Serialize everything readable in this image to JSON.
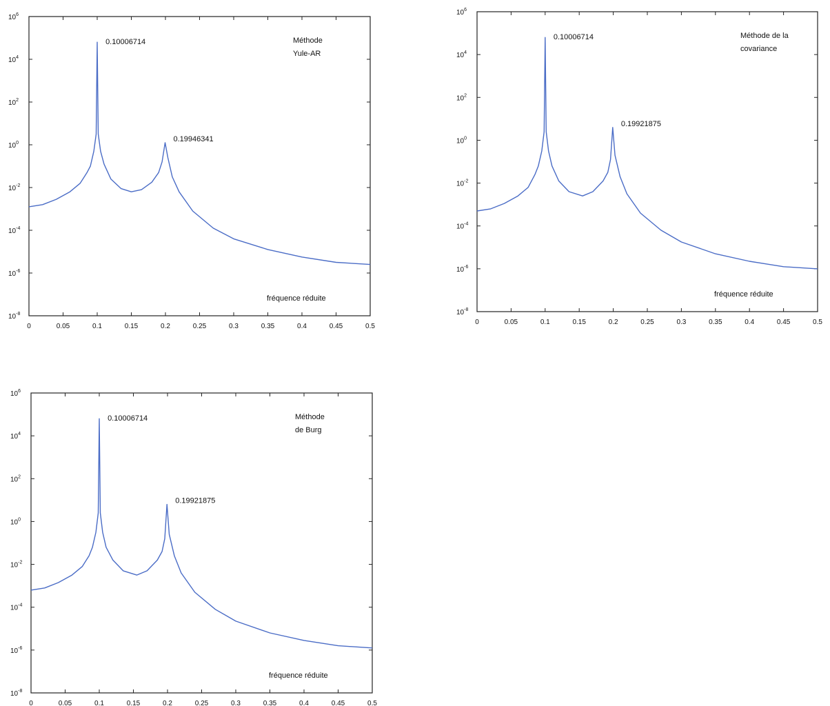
{
  "chart_data": [
    {
      "type": "line",
      "method_label": [
        "Méthode",
        "Yule-AR"
      ],
      "xlabel": "fréquence réduite",
      "xlim": [
        0,
        0.5
      ],
      "yscale": "log",
      "y_ticks": [
        {
          "base": "10",
          "exp": "-8"
        },
        {
          "base": "10",
          "exp": "-6"
        },
        {
          "base": "10",
          "exp": "-4"
        },
        {
          "base": "10",
          "exp": "-2"
        },
        {
          "base": "10",
          "exp": "0"
        },
        {
          "base": "10",
          "exp": "2"
        },
        {
          "base": "10",
          "exp": "4"
        },
        {
          "base": "10",
          "exp": "6"
        }
      ],
      "x_ticks": [
        "0",
        "0.05",
        "0.1",
        "0.15",
        "0.2",
        "0.25",
        "0.3",
        "0.35",
        "0.4",
        "0.45",
        "0.5"
      ],
      "peaks": [
        {
          "x": 0.10006714,
          "label": "0.10006714"
        },
        {
          "x": 0.19946341,
          "label": "0.19946341"
        }
      ],
      "series": [
        {
          "color": "#4a6cc6",
          "points": [
            [
              0,
              -2.9
            ],
            [
              0.02,
              -2.8
            ],
            [
              0.04,
              -2.55
            ],
            [
              0.06,
              -2.2
            ],
            [
              0.075,
              -1.8
            ],
            [
              0.085,
              -1.3
            ],
            [
              0.09,
              -1.0
            ],
            [
              0.095,
              -0.3
            ],
            [
              0.0985,
              0.5
            ],
            [
              0.1,
              4.8
            ],
            [
              0.1015,
              0.5
            ],
            [
              0.105,
              -0.3
            ],
            [
              0.11,
              -0.9
            ],
            [
              0.12,
              -1.6
            ],
            [
              0.135,
              -2.05
            ],
            [
              0.15,
              -2.2
            ],
            [
              0.165,
              -2.1
            ],
            [
              0.18,
              -1.75
            ],
            [
              0.19,
              -1.3
            ],
            [
              0.195,
              -0.8
            ],
            [
              0.1995,
              0.1
            ],
            [
              0.2035,
              -0.6
            ],
            [
              0.21,
              -1.5
            ],
            [
              0.22,
              -2.2
            ],
            [
              0.24,
              -3.1
            ],
            [
              0.27,
              -3.9
            ],
            [
              0.3,
              -4.4
            ],
            [
              0.35,
              -4.9
            ],
            [
              0.4,
              -5.25
            ],
            [
              0.45,
              -5.5
            ],
            [
              0.5,
              -5.6
            ]
          ]
        }
      ]
    },
    {
      "type": "line",
      "method_label": [
        "Méthode de la",
        "covariance"
      ],
      "xlabel": "fréquence réduite",
      "xlim": [
        0,
        0.5
      ],
      "yscale": "log",
      "y_ticks": [
        {
          "base": "10",
          "exp": "-8"
        },
        {
          "base": "10",
          "exp": "-6"
        },
        {
          "base": "10",
          "exp": "-4"
        },
        {
          "base": "10",
          "exp": "-2"
        },
        {
          "base": "10",
          "exp": "0"
        },
        {
          "base": "10",
          "exp": "2"
        },
        {
          "base": "10",
          "exp": "4"
        },
        {
          "base": "10",
          "exp": "6"
        }
      ],
      "x_ticks": [
        "0",
        "0.05",
        "0.1",
        "0.15",
        "0.2",
        "0.25",
        "0.3",
        "0.35",
        "0.4",
        "0.45",
        "0.5"
      ],
      "peaks": [
        {
          "x": 0.10006714,
          "label": "0.10006714"
        },
        {
          "x": 0.19921875,
          "label": "0.19921875"
        }
      ],
      "series": [
        {
          "color": "#4a6cc6",
          "points": [
            [
              0,
              -3.3
            ],
            [
              0.02,
              -3.2
            ],
            [
              0.04,
              -2.95
            ],
            [
              0.06,
              -2.6
            ],
            [
              0.075,
              -2.2
            ],
            [
              0.085,
              -1.6
            ],
            [
              0.09,
              -1.2
            ],
            [
              0.095,
              -0.5
            ],
            [
              0.0985,
              0.4
            ],
            [
              0.1,
              4.8
            ],
            [
              0.1015,
              0.4
            ],
            [
              0.105,
              -0.5
            ],
            [
              0.11,
              -1.2
            ],
            [
              0.12,
              -1.9
            ],
            [
              0.135,
              -2.4
            ],
            [
              0.155,
              -2.6
            ],
            [
              0.17,
              -2.4
            ],
            [
              0.185,
              -1.9
            ],
            [
              0.192,
              -1.5
            ],
            [
              0.196,
              -0.9
            ],
            [
              0.1992,
              0.6
            ],
            [
              0.2025,
              -0.7
            ],
            [
              0.21,
              -1.7
            ],
            [
              0.22,
              -2.5
            ],
            [
              0.24,
              -3.4
            ],
            [
              0.27,
              -4.2
            ],
            [
              0.3,
              -4.75
            ],
            [
              0.35,
              -5.3
            ],
            [
              0.4,
              -5.65
            ],
            [
              0.45,
              -5.9
            ],
            [
              0.5,
              -6.0
            ]
          ]
        }
      ]
    },
    {
      "type": "line",
      "method_label": [
        "Méthode",
        "de Burg"
      ],
      "xlabel": "fréquence réduite",
      "xlim": [
        0,
        0.5
      ],
      "yscale": "log",
      "y_ticks": [
        {
          "base": "10",
          "exp": "-8"
        },
        {
          "base": "10",
          "exp": "-6"
        },
        {
          "base": "10",
          "exp": "-4"
        },
        {
          "base": "10",
          "exp": "-2"
        },
        {
          "base": "10",
          "exp": "0"
        },
        {
          "base": "10",
          "exp": "2"
        },
        {
          "base": "10",
          "exp": "4"
        },
        {
          "base": "10",
          "exp": "6"
        }
      ],
      "x_ticks": [
        "0",
        "0.05",
        "0.1",
        "0.15",
        "0.2",
        "0.25",
        "0.3",
        "0.35",
        "0.4",
        "0.45",
        "0.5"
      ],
      "peaks": [
        {
          "x": 0.10006714,
          "label": "0.10006714"
        },
        {
          "x": 0.19921875,
          "label": "0.19921875"
        }
      ],
      "series": [
        {
          "color": "#4a6cc6",
          "points": [
            [
              0,
              -3.2
            ],
            [
              0.02,
              -3.1
            ],
            [
              0.04,
              -2.85
            ],
            [
              0.06,
              -2.5
            ],
            [
              0.075,
              -2.1
            ],
            [
              0.085,
              -1.6
            ],
            [
              0.09,
              -1.2
            ],
            [
              0.095,
              -0.5
            ],
            [
              0.0985,
              0.4
            ],
            [
              0.1,
              4.8
            ],
            [
              0.1015,
              0.4
            ],
            [
              0.105,
              -0.5
            ],
            [
              0.11,
              -1.2
            ],
            [
              0.12,
              -1.8
            ],
            [
              0.135,
              -2.3
            ],
            [
              0.155,
              -2.5
            ],
            [
              0.17,
              -2.3
            ],
            [
              0.185,
              -1.8
            ],
            [
              0.192,
              -1.4
            ],
            [
              0.196,
              -0.8
            ],
            [
              0.1992,
              0.8
            ],
            [
              0.2025,
              -0.6
            ],
            [
              0.21,
              -1.6
            ],
            [
              0.22,
              -2.4
            ],
            [
              0.24,
              -3.3
            ],
            [
              0.27,
              -4.1
            ],
            [
              0.3,
              -4.65
            ],
            [
              0.35,
              -5.2
            ],
            [
              0.4,
              -5.55
            ],
            [
              0.45,
              -5.8
            ],
            [
              0.5,
              -5.9
            ]
          ]
        }
      ]
    }
  ]
}
